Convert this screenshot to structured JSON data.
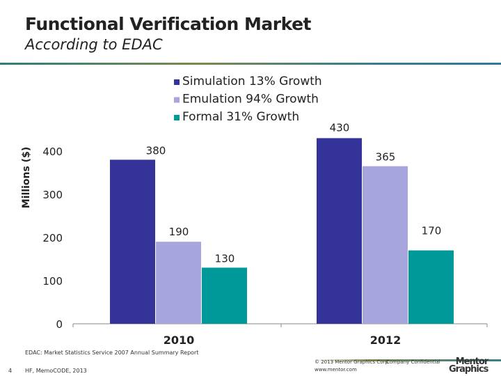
{
  "header": {
    "title": "Functional Verification Market",
    "subtitle": "According to EDAC"
  },
  "chart_data": {
    "type": "bar",
    "categories": [
      "2010",
      "2012"
    ],
    "series": [
      {
        "name": "Simulation 13% Growth",
        "values": [
          380,
          430
        ],
        "color": "#333399"
      },
      {
        "name": "Emulation 94% Growth",
        "values": [
          190,
          365
        ],
        "color": "#a6a6dd"
      },
      {
        "name": "Formal 31% Growth",
        "values": [
          130,
          170
        ],
        "color": "#009999"
      }
    ],
    "ylabel": "Millions ($)",
    "ylim": [
      0,
      400
    ],
    "yticks": [
      0,
      100,
      200,
      300,
      400
    ],
    "legend": "top-center",
    "grid": false
  },
  "footer": {
    "source": "EDAC: Market Statistics Service 2007 Annual Summary Report",
    "page": "4",
    "event": "HF, MemoCODE, 2013",
    "copyright": "© 2013 Mentor Graphics Corp.",
    "confidential": "Company Confidential",
    "url": "www.mentor.com",
    "logo": "Mentor Graphics"
  }
}
